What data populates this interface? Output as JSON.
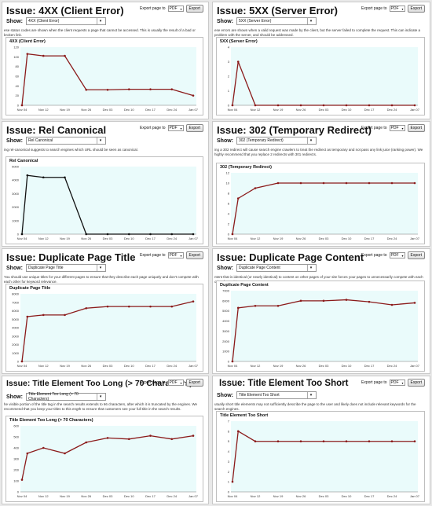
{
  "common": {
    "show_label": "Show:",
    "export_label": "Export page to",
    "export_format": "PDF",
    "export_button": "Export"
  },
  "panels": [
    {
      "title": "Issue: 4XX (Client Error)",
      "selected": "4XX (Client Error)",
      "description": "ese status codes are shown when the client requests a page that cannot be accessed. This is usually the result of a bad or broken link.",
      "chart_title": "4XX (Client Error)"
    },
    {
      "title": "Issue: 5XX (Server Error)",
      "selected": "5XX (Server Error)",
      "description": "ese errors are shown when a valid request was made by the client, but the server failed to complete the request. This can indicate a problem with the server, and should be addressed.",
      "chart_title": "5XX (Server Error)"
    },
    {
      "title": "Issue: Rel Canonical",
      "selected": "Rel Canonical",
      "description": "ing rel-canonical suggests to search engines which URL should be seen as canonical.",
      "chart_title": "Rel Canonical"
    },
    {
      "title": "Issue: 302 (Temporary Redirect)",
      "selected": "302 (Temporary Redirect)",
      "description": "ing a 302 redirect will cause search engine crawlers to treat the redirect as temporary and not pass any link juice (ranking power). We highly recommend that you replace 2 redirects with 301 redirects.",
      "chart_title": "302 (Temporary Redirect)"
    },
    {
      "title": "Issue: Duplicate Page Title",
      "selected": "Duplicate Page Title",
      "description": "You should use unique titles for your different pages to ensure that they describe each page uniquely and don't compete with each other for keyword relevance.",
      "chart_title": "Duplicate Page Title"
    },
    {
      "title": "Issue: Duplicate Page Content",
      "selected": "Duplicate Page Content",
      "description": "ntent that is identical (or nearly identical) to content on other pages of your site forces your pages to unnecessarily compete with each other for rankings.",
      "chart_title": "Duplicate Page Content"
    },
    {
      "title": "Issue: Title Element Too Long (> 70 Characters)",
      "selected": "Title Element Too Long (> 70 Characters)",
      "description": "he visible portion of the title tag in the search results extends to 66 characters, after which it is truncated by the engines. We recommend that you keep your titles to this ength to ensure that customers see your full title in the search results.",
      "chart_title": "Title Element Too Long (> 70 Characters)"
    },
    {
      "title": "Issue: Title Element Too Short",
      "selected": "Title Element Too Short",
      "description": "utually short title elements may not sufficiently describe the page to the user and likely does not include relevant keywords for the search engines.",
      "chart_title": "Title Element Too Short"
    }
  ],
  "chart_data": [
    {
      "type": "line",
      "title": "4XX (Client Error)",
      "x": [
        "Nov 04",
        "Nov 12",
        "Nov 19",
        "Nov 26",
        "Dec 03",
        "Dec 10",
        "Dec 17",
        "Dec 24",
        "Jan 07"
      ],
      "series": [
        {
          "color": "#8b1a1a",
          "points": [
            [
              0,
              0
            ],
            [
              0.25,
              106
            ],
            [
              1,
              102
            ],
            [
              2,
              102
            ],
            [
              3,
              32
            ],
            [
              4,
              32
            ],
            [
              5,
              33
            ],
            [
              6,
              33
            ],
            [
              7,
              33
            ],
            [
              8,
              20
            ]
          ]
        }
      ],
      "ylim": [
        0,
        120
      ],
      "yticks": [
        0,
        20,
        40,
        60,
        80,
        100,
        120
      ]
    },
    {
      "type": "line",
      "title": "5XX (Server Error)",
      "x": [
        "Nov 04",
        "Nov 12",
        "Nov 19",
        "Nov 26",
        "Dec 03",
        "Dec 10",
        "Dec 17",
        "Dec 24",
        "Jan 07"
      ],
      "series": [
        {
          "color": "#8b1a1a",
          "points": [
            [
              0,
              0
            ],
            [
              0.25,
              3
            ],
            [
              1,
              0
            ],
            [
              2,
              0
            ],
            [
              3,
              0
            ],
            [
              4,
              0
            ],
            [
              5,
              0
            ],
            [
              6,
              0
            ],
            [
              7,
              0
            ],
            [
              8,
              0
            ]
          ]
        }
      ],
      "ylim": [
        0,
        4
      ],
      "yticks": [
        0,
        1,
        2,
        3,
        4
      ]
    },
    {
      "type": "line",
      "title": "Rel Canonical",
      "x": [
        "Nov 04",
        "Nov 12",
        "Nov 19",
        "Nov 26",
        "Dec 03",
        "Dec 10",
        "Dec 17",
        "Dec 24",
        "Jan 07"
      ],
      "series": [
        {
          "color": "#111111",
          "points": [
            [
              0,
              0
            ],
            [
              0.25,
              4350
            ],
            [
              1,
              4200
            ],
            [
              2,
              4200
            ],
            [
              3,
              0
            ],
            [
              4,
              0
            ],
            [
              5,
              0
            ],
            [
              6,
              0
            ],
            [
              7,
              0
            ],
            [
              8,
              0
            ]
          ]
        }
      ],
      "ylim": [
        0,
        5000
      ],
      "yticks": [
        0,
        1000,
        2000,
        3000,
        4000,
        5000
      ]
    },
    {
      "type": "line",
      "title": "302 (Temporary Redirect)",
      "x": [
        "Nov 04",
        "Nov 12",
        "Nov 19",
        "Nov 26",
        "Dec 03",
        "Dec 10",
        "Dec 17",
        "Dec 24",
        "Jan 07"
      ],
      "series": [
        {
          "color": "#8b1a1a",
          "points": [
            [
              0,
              0
            ],
            [
              0.25,
              7
            ],
            [
              1,
              9
            ],
            [
              2,
              10
            ],
            [
              3,
              10
            ],
            [
              4,
              10
            ],
            [
              5,
              10
            ],
            [
              6,
              10
            ],
            [
              7,
              10
            ],
            [
              8,
              10
            ]
          ]
        }
      ],
      "ylim": [
        0,
        12
      ],
      "yticks": [
        0,
        2,
        4,
        6,
        8,
        10,
        12
      ]
    },
    {
      "type": "line",
      "title": "Duplicate Page Title",
      "x": [
        "Nov 04",
        "Nov 12",
        "Nov 19",
        "Nov 26",
        "Dec 03",
        "Dec 10",
        "Dec 17",
        "Dec 24",
        "Jan 07"
      ],
      "series": [
        {
          "color": "#8b1a1a",
          "points": [
            [
              0,
              0
            ],
            [
              0.25,
              5300
            ],
            [
              1,
              5500
            ],
            [
              2,
              5500
            ],
            [
              3,
              6300
            ],
            [
              4,
              6500
            ],
            [
              5,
              6500
            ],
            [
              6,
              6500
            ],
            [
              7,
              6500
            ],
            [
              8,
              7100
            ]
          ]
        }
      ],
      "ylim": [
        0,
        8000
      ],
      "yticks": [
        0,
        1000,
        2000,
        3000,
        4000,
        5000,
        6000,
        7000,
        8000
      ]
    },
    {
      "type": "line",
      "title": "Duplicate Page Content",
      "x": [
        "Nov 04",
        "Nov 12",
        "Nov 19",
        "Nov 26",
        "Dec 03",
        "Dec 10",
        "Dec 17",
        "Dec 24",
        "Jan 07"
      ],
      "series": [
        {
          "color": "#8b1a1a",
          "points": [
            [
              0,
              0
            ],
            [
              0.25,
              5300
            ],
            [
              1,
              5500
            ],
            [
              2,
              5500
            ],
            [
              3,
              6000
            ],
            [
              4,
              6000
            ],
            [
              5,
              6100
            ],
            [
              6,
              5900
            ],
            [
              7,
              5600
            ],
            [
              8,
              5800
            ]
          ]
        }
      ],
      "ylim": [
        0,
        7000
      ],
      "yticks": [
        0,
        1000,
        2000,
        3000,
        4000,
        5000,
        6000,
        7000
      ]
    },
    {
      "type": "line",
      "title": "Title Element Too Long (> 70 Characters)",
      "x": [
        "Nov 04",
        "Nov 12",
        "Nov 19",
        "Nov 26",
        "Dec 03",
        "Dec 10",
        "Dec 17",
        "Dec 24",
        "Jan 07"
      ],
      "series": [
        {
          "color": "#8b1a1a",
          "points": [
            [
              0,
              110
            ],
            [
              0.25,
              350
            ],
            [
              1,
              400
            ],
            [
              2,
              350
            ],
            [
              3,
              450
            ],
            [
              4,
              490
            ],
            [
              5,
              480
            ],
            [
              6,
              510
            ],
            [
              7,
              480
            ],
            [
              8,
              510
            ]
          ]
        }
      ],
      "ylim": [
        0,
        600
      ],
      "yticks": [
        0,
        100,
        200,
        300,
        400,
        500,
        600
      ]
    },
    {
      "type": "line",
      "title": "Title Element Too Short",
      "x": [
        "Nov 04",
        "Nov 12",
        "Nov 19",
        "Nov 26",
        "Dec 03",
        "Dec 10",
        "Dec 17",
        "Dec 24",
        "Jan 07"
      ],
      "series": [
        {
          "color": "#8b1a1a",
          "points": [
            [
              0,
              1
            ],
            [
              0.25,
              6
            ],
            [
              1,
              5
            ],
            [
              2,
              5
            ],
            [
              3,
              5
            ],
            [
              4,
              5
            ],
            [
              5,
              5
            ],
            [
              6,
              5
            ],
            [
              7,
              5
            ],
            [
              8,
              5
            ]
          ]
        }
      ],
      "ylim": [
        0,
        7
      ],
      "yticks": [
        0,
        1,
        2,
        3,
        4,
        5,
        6,
        7
      ]
    }
  ]
}
